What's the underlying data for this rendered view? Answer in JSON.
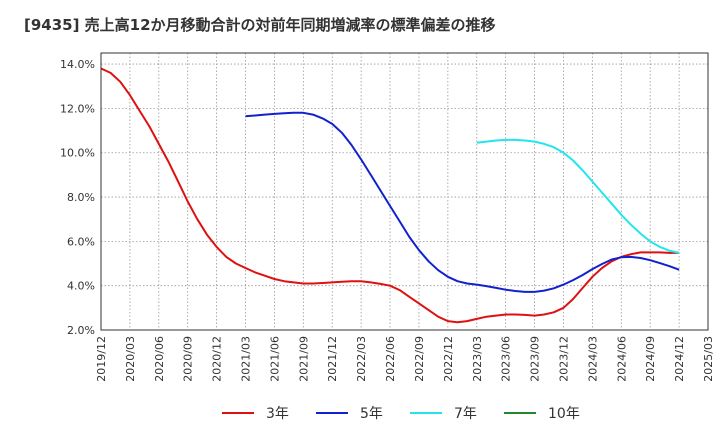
{
  "title": "[9435]  売上高12か月移動合計の対前年同期増減率の標準偏差の推移",
  "chart_data": {
    "type": "line",
    "title": "[9435]  売上高12か月移動合計の対前年同期増減率の標準偏差の推移",
    "xlabel": "",
    "ylabel": "",
    "x_ticks": [
      "2019/12",
      "2020/03",
      "2020/06",
      "2020/09",
      "2020/12",
      "2021/03",
      "2021/06",
      "2021/09",
      "2021/12",
      "2022/03",
      "2022/06",
      "2022/09",
      "2022/12",
      "2023/03",
      "2023/06",
      "2023/09",
      "2023/12",
      "2024/03",
      "2024/06",
      "2024/09",
      "2024/12",
      "2025/03"
    ],
    "y_ticks": [
      "2.0%",
      "4.0%",
      "6.0%",
      "8.0%",
      "10.0%",
      "12.0%",
      "14.0%"
    ],
    "ylim": [
      2.0,
      14.5
    ],
    "grid": true,
    "legend_position": "bottom",
    "series": [
      {
        "name": "3年",
        "color": "#dd1111",
        "points": [
          [
            "2019/12",
            13.8
          ],
          [
            "2020/01",
            13.6
          ],
          [
            "2020/02",
            13.2
          ],
          [
            "2020/03",
            12.6
          ],
          [
            "2020/04",
            11.9
          ],
          [
            "2020/05",
            11.2
          ],
          [
            "2020/06",
            10.4
          ],
          [
            "2020/07",
            9.6
          ],
          [
            "2020/08",
            8.7
          ],
          [
            "2020/09",
            7.8
          ],
          [
            "2020/10",
            7.0
          ],
          [
            "2020/11",
            6.3
          ],
          [
            "2020/12",
            5.75
          ],
          [
            "2021/01",
            5.3
          ],
          [
            "2021/02",
            5.0
          ],
          [
            "2021/03",
            4.8
          ],
          [
            "2021/04",
            4.6
          ],
          [
            "2021/05",
            4.45
          ],
          [
            "2021/06",
            4.3
          ],
          [
            "2021/07",
            4.2
          ],
          [
            "2021/08",
            4.15
          ],
          [
            "2021/09",
            4.1
          ],
          [
            "2021/10",
            4.1
          ],
          [
            "2021/11",
            4.12
          ],
          [
            "2021/12",
            4.15
          ],
          [
            "2022/01",
            4.18
          ],
          [
            "2022/02",
            4.2
          ],
          [
            "2022/03",
            4.2
          ],
          [
            "2022/04",
            4.15
          ],
          [
            "2022/05",
            4.08
          ],
          [
            "2022/06",
            4.0
          ],
          [
            "2022/07",
            3.8
          ],
          [
            "2022/08",
            3.5
          ],
          [
            "2022/09",
            3.2
          ],
          [
            "2022/10",
            2.9
          ],
          [
            "2022/11",
            2.6
          ],
          [
            "2022/12",
            2.4
          ],
          [
            "2023/01",
            2.35
          ],
          [
            "2023/02",
            2.4
          ],
          [
            "2023/03",
            2.5
          ],
          [
            "2023/04",
            2.6
          ],
          [
            "2023/05",
            2.65
          ],
          [
            "2023/06",
            2.7
          ],
          [
            "2023/07",
            2.7
          ],
          [
            "2023/08",
            2.68
          ],
          [
            "2023/09",
            2.65
          ],
          [
            "2023/10",
            2.7
          ],
          [
            "2023/11",
            2.8
          ],
          [
            "2023/12",
            3.0
          ],
          [
            "2024/01",
            3.4
          ],
          [
            "2024/02",
            3.9
          ],
          [
            "2024/03",
            4.4
          ],
          [
            "2024/04",
            4.8
          ],
          [
            "2024/05",
            5.1
          ],
          [
            "2024/06",
            5.3
          ],
          [
            "2024/07",
            5.42
          ],
          [
            "2024/08",
            5.5
          ],
          [
            "2024/09",
            5.5
          ],
          [
            "2024/10",
            5.5
          ],
          [
            "2024/11",
            5.48
          ],
          [
            "2024/12",
            5.48
          ]
        ]
      },
      {
        "name": "5年",
        "color": "#1122cc",
        "points": [
          [
            "2021/03",
            11.65
          ],
          [
            "2021/04",
            11.68
          ],
          [
            "2021/05",
            11.72
          ],
          [
            "2021/06",
            11.75
          ],
          [
            "2021/07",
            11.78
          ],
          [
            "2021/08",
            11.8
          ],
          [
            "2021/09",
            11.8
          ],
          [
            "2021/10",
            11.72
          ],
          [
            "2021/11",
            11.55
          ],
          [
            "2021/12",
            11.3
          ],
          [
            "2022/01",
            10.9
          ],
          [
            "2022/02",
            10.35
          ],
          [
            "2022/03",
            9.7
          ],
          [
            "2022/04",
            9.0
          ],
          [
            "2022/05",
            8.3
          ],
          [
            "2022/06",
            7.6
          ],
          [
            "2022/07",
            6.9
          ],
          [
            "2022/08",
            6.2
          ],
          [
            "2022/09",
            5.6
          ],
          [
            "2022/10",
            5.1
          ],
          [
            "2022/11",
            4.7
          ],
          [
            "2022/12",
            4.4
          ],
          [
            "2023/01",
            4.2
          ],
          [
            "2023/02",
            4.1
          ],
          [
            "2023/03",
            4.05
          ],
          [
            "2023/04",
            3.98
          ],
          [
            "2023/05",
            3.9
          ],
          [
            "2023/06",
            3.82
          ],
          [
            "2023/07",
            3.76
          ],
          [
            "2023/08",
            3.72
          ],
          [
            "2023/09",
            3.72
          ],
          [
            "2023/10",
            3.78
          ],
          [
            "2023/11",
            3.88
          ],
          [
            "2023/12",
            4.05
          ],
          [
            "2024/01",
            4.25
          ],
          [
            "2024/02",
            4.48
          ],
          [
            "2024/03",
            4.75
          ],
          [
            "2024/04",
            4.98
          ],
          [
            "2024/05",
            5.18
          ],
          [
            "2024/06",
            5.28
          ],
          [
            "2024/07",
            5.3
          ],
          [
            "2024/08",
            5.25
          ],
          [
            "2024/09",
            5.15
          ],
          [
            "2024/10",
            5.02
          ],
          [
            "2024/11",
            4.88
          ],
          [
            "2024/12",
            4.72
          ]
        ]
      },
      {
        "name": "7年",
        "color": "#22e5ee",
        "points": [
          [
            "2023/03",
            10.45
          ],
          [
            "2023/04",
            10.5
          ],
          [
            "2023/05",
            10.55
          ],
          [
            "2023/06",
            10.58
          ],
          [
            "2023/07",
            10.58
          ],
          [
            "2023/08",
            10.55
          ],
          [
            "2023/09",
            10.5
          ],
          [
            "2023/10",
            10.4
          ],
          [
            "2023/11",
            10.25
          ],
          [
            "2023/12",
            10.0
          ],
          [
            "2024/01",
            9.65
          ],
          [
            "2024/02",
            9.2
          ],
          [
            "2024/03",
            8.7
          ],
          [
            "2024/04",
            8.2
          ],
          [
            "2024/05",
            7.7
          ],
          [
            "2024/06",
            7.2
          ],
          [
            "2024/07",
            6.75
          ],
          [
            "2024/08",
            6.35
          ],
          [
            "2024/09",
            6.0
          ],
          [
            "2024/10",
            5.75
          ],
          [
            "2024/11",
            5.58
          ],
          [
            "2024/12",
            5.48
          ]
        ]
      },
      {
        "name": "10年",
        "color": "#22882e",
        "points": []
      }
    ]
  }
}
